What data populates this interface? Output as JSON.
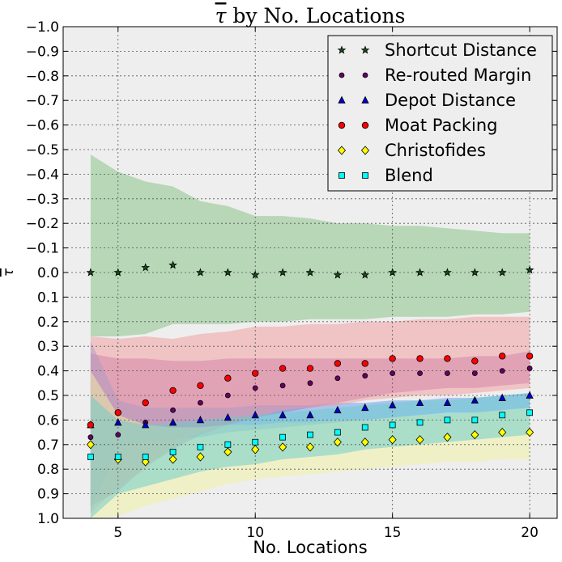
{
  "chart_data": {
    "type": "scatter",
    "title": "τ by No. Locations",
    "xlabel": "No. Locations",
    "ylabel": "τ",
    "xlim": [
      3,
      21
    ],
    "ylim": [
      1.0,
      -1.0
    ],
    "y_inverted": true,
    "grid": true,
    "legend_position": "top-right",
    "x_ticks": [
      5,
      10,
      15,
      20
    ],
    "x_tick_labels": [
      "5",
      "10",
      "15",
      "20"
    ],
    "y_ticks": [
      -1.0,
      -0.9,
      -0.8,
      -0.7,
      -0.6,
      -0.5,
      -0.4,
      -0.3,
      -0.2,
      -0.1,
      0.0,
      0.1,
      0.2,
      0.3,
      0.4,
      0.5,
      0.6,
      0.7,
      0.8,
      0.9,
      1.0
    ],
    "y_tick_labels": [
      "−1.0",
      "−0.9",
      "−0.8",
      "−0.7",
      "−0.6",
      "−0.5",
      "−0.4",
      "−0.3",
      "−0.2",
      "−0.1",
      "0.0",
      "0.1",
      "0.2",
      "0.3",
      "0.4",
      "0.5",
      "0.6",
      "0.7",
      "0.8",
      "0.9",
      "1.0"
    ],
    "x": [
      4,
      5,
      6,
      7,
      8,
      9,
      10,
      11,
      12,
      13,
      14,
      15,
      16,
      17,
      18,
      19,
      20
    ],
    "series": [
      {
        "name": "Shortcut Distance",
        "marker": "star",
        "color": "#1a4d1a",
        "band_color": "#7fbf7f",
        "values": [
          0.0,
          0.0,
          -0.02,
          -0.03,
          0.0,
          0.0,
          0.01,
          0.0,
          0.0,
          0.01,
          0.01,
          0.0,
          0.0,
          0.0,
          0.0,
          0.0,
          -0.01
        ],
        "band_upper": [
          -0.48,
          -0.41,
          -0.37,
          -0.35,
          -0.29,
          -0.27,
          -0.23,
          -0.23,
          -0.22,
          -0.2,
          -0.2,
          -0.19,
          -0.19,
          -0.18,
          -0.17,
          -0.16,
          -0.16
        ],
        "band_lower": [
          0.26,
          0.26,
          0.25,
          0.21,
          0.21,
          0.21,
          0.2,
          0.2,
          0.19,
          0.19,
          0.19,
          0.18,
          0.18,
          0.18,
          0.17,
          0.17,
          0.16
        ]
      },
      {
        "name": "Re-routed Margin",
        "marker": "circle-small",
        "color": "#660066",
        "band_color": "#b266b2",
        "values": [
          0.67,
          0.66,
          0.61,
          0.56,
          0.53,
          0.5,
          0.47,
          0.46,
          0.45,
          0.43,
          0.42,
          0.41,
          0.41,
          0.41,
          0.41,
          0.4,
          0.39
        ],
        "band_upper": [
          0.33,
          0.35,
          0.35,
          0.36,
          0.36,
          0.35,
          0.35,
          0.35,
          0.35,
          0.35,
          0.35,
          0.35,
          0.35,
          0.35,
          0.34,
          0.34,
          0.32
        ],
        "band_lower": [
          0.95,
          0.89,
          0.79,
          0.72,
          0.66,
          0.62,
          0.59,
          0.57,
          0.55,
          0.53,
          0.51,
          0.49,
          0.48,
          0.47,
          0.47,
          0.46,
          0.45
        ]
      },
      {
        "name": "Depot Distance",
        "marker": "triangle",
        "color": "#0000cc",
        "band_color": "#6699ee",
        "values": [
          0.62,
          0.61,
          0.62,
          0.61,
          0.6,
          0.59,
          0.58,
          0.58,
          0.58,
          0.56,
          0.55,
          0.54,
          0.53,
          0.53,
          0.52,
          0.51,
          0.5
        ],
        "band_upper": [
          0.28,
          0.52,
          0.55,
          0.55,
          0.55,
          0.55,
          0.54,
          0.54,
          0.54,
          0.53,
          0.53,
          0.52,
          0.52,
          0.51,
          0.51,
          0.5,
          0.49
        ],
        "band_lower": [
          0.97,
          0.71,
          0.69,
          0.68,
          0.67,
          0.65,
          0.64,
          0.63,
          0.62,
          0.61,
          0.6,
          0.59,
          0.58,
          0.57,
          0.57,
          0.56,
          0.55
        ]
      },
      {
        "name": "Moat Packing",
        "marker": "circle",
        "color": "#ff0000",
        "band_color": "#f29a9a",
        "values": [
          0.62,
          0.57,
          0.53,
          0.48,
          0.46,
          0.43,
          0.41,
          0.39,
          0.39,
          0.37,
          0.37,
          0.35,
          0.35,
          0.35,
          0.36,
          0.34,
          0.34
        ],
        "band_upper": [
          0.26,
          0.27,
          0.26,
          0.27,
          0.25,
          0.24,
          0.22,
          0.22,
          0.21,
          0.21,
          0.2,
          0.2,
          0.19,
          0.19,
          0.18,
          0.18,
          0.18
        ],
        "band_lower": [
          0.98,
          0.87,
          0.8,
          0.7,
          0.65,
          0.62,
          0.59,
          0.56,
          0.55,
          0.54,
          0.52,
          0.51,
          0.5,
          0.5,
          0.49,
          0.48,
          0.47
        ]
      },
      {
        "name": "Christofides",
        "marker": "diamond",
        "color": "#ffff00",
        "band_color": "#f2f2a0",
        "values": [
          0.7,
          0.76,
          0.77,
          0.76,
          0.75,
          0.73,
          0.72,
          0.71,
          0.71,
          0.69,
          0.69,
          0.68,
          0.68,
          0.67,
          0.66,
          0.65,
          0.65
        ],
        "band_upper": [
          0.4,
          0.58,
          0.62,
          0.63,
          0.63,
          0.62,
          0.62,
          0.61,
          0.61,
          0.6,
          0.6,
          0.59,
          0.58,
          0.58,
          0.57,
          0.56,
          0.55
        ],
        "band_lower": [
          1.0,
          0.99,
          0.95,
          0.92,
          0.89,
          0.86,
          0.84,
          0.83,
          0.82,
          0.81,
          0.8,
          0.79,
          0.78,
          0.77,
          0.77,
          0.76,
          0.76
        ]
      },
      {
        "name": "Blend",
        "marker": "square",
        "color": "#00ffff",
        "band_color": "#66cccc",
        "values": [
          0.75,
          0.75,
          0.75,
          0.73,
          0.71,
          0.7,
          0.69,
          0.67,
          0.66,
          0.65,
          0.63,
          0.62,
          0.61,
          0.6,
          0.6,
          0.58,
          0.57
        ],
        "band_upper": [
          0.5,
          0.6,
          0.62,
          0.61,
          0.6,
          0.59,
          0.58,
          0.57,
          0.56,
          0.55,
          0.54,
          0.53,
          0.52,
          0.52,
          0.51,
          0.5,
          0.49
        ],
        "band_lower": [
          1.0,
          0.9,
          0.87,
          0.84,
          0.81,
          0.79,
          0.78,
          0.76,
          0.75,
          0.74,
          0.72,
          0.71,
          0.7,
          0.69,
          0.68,
          0.67,
          0.66
        ]
      }
    ]
  }
}
